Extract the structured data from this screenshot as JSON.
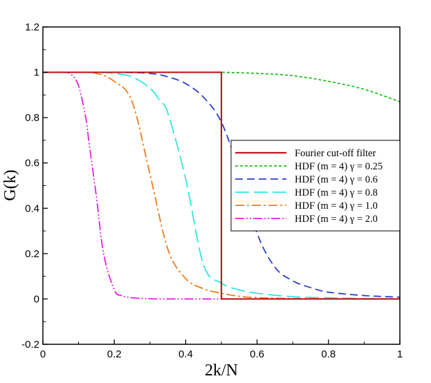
{
  "chart_data": {
    "type": "line",
    "title": "",
    "xlabel": "2k/N",
    "ylabel": "G(k)",
    "xlim": [
      0,
      1
    ],
    "ylim": [
      -0.2,
      1.2
    ],
    "xticks": [
      0,
      0.2,
      0.4,
      0.6,
      0.8,
      1
    ],
    "xtick_labels": [
      "0",
      "0.2",
      "0.4",
      "0.6",
      "0.8",
      "1"
    ],
    "yticks": [
      -0.2,
      0,
      0.2,
      0.4,
      0.6,
      0.8,
      1,
      1.2
    ],
    "ytick_labels": [
      "-0.2",
      "0",
      "0.2",
      "0.4",
      "0.6",
      "0.8",
      "1",
      "1.2"
    ],
    "grid": false,
    "legend_position": "right-middle",
    "series": [
      {
        "name": "Fourier cut-off filter",
        "color": "#c0141c",
        "style": "solid",
        "x": [
          0,
          0.5,
          0.5,
          1
        ],
        "y": [
          1,
          1,
          0,
          0
        ]
      },
      {
        "name": "HDF (m = 4) γ = 0.25",
        "color": "#1fbf1f",
        "style": "dotted",
        "x": [
          0,
          0.1,
          0.2,
          0.3,
          0.4,
          0.5,
          0.6,
          0.7,
          0.8,
          0.9,
          1.0
        ],
        "y": [
          1,
          1,
          1,
          1,
          1,
          1,
          0.995,
          0.985,
          0.96,
          0.925,
          0.87
        ]
      },
      {
        "name": "HDF (m = 4) γ = 0.6",
        "color": "#2b3fc9",
        "style": "dashed",
        "x": [
          0,
          0.2,
          0.3,
          0.35,
          0.4,
          0.45,
          0.5,
          0.55,
          0.6,
          0.65,
          0.7,
          0.75,
          0.8,
          0.9,
          1.0
        ],
        "y": [
          1,
          1,
          0.995,
          0.98,
          0.95,
          0.89,
          0.78,
          0.56,
          0.29,
          0.14,
          0.08,
          0.05,
          0.03,
          0.015,
          0.008
        ]
      },
      {
        "name": "HDF (m = 4) γ = 0.8",
        "color": "#2fe6e6",
        "style": "long-dashed",
        "x": [
          0,
          0.15,
          0.2,
          0.25,
          0.3,
          0.33,
          0.35,
          0.4,
          0.45,
          0.5,
          0.55,
          0.6,
          0.7,
          0.8,
          0.9,
          1.0
        ],
        "y": [
          1,
          1,
          0.995,
          0.98,
          0.93,
          0.87,
          0.82,
          0.53,
          0.15,
          0.07,
          0.04,
          0.025,
          0.01,
          0.005,
          0.002,
          0.001
        ]
      },
      {
        "name": "HDF (m = 4) γ = 1.0",
        "color": "#f07d1a",
        "style": "dash-dot",
        "x": [
          0,
          0.1,
          0.15,
          0.2,
          0.25,
          0.3,
          0.35,
          0.4,
          0.45,
          0.5,
          0.55,
          0.6,
          0.7,
          1.0
        ],
        "y": [
          1,
          1,
          0.995,
          0.96,
          0.87,
          0.55,
          0.22,
          0.09,
          0.045,
          0.025,
          0.012,
          0.006,
          0.002,
          0
        ]
      },
      {
        "name": "HDF (m = 4) γ = 2.0",
        "color": "#e020e0",
        "style": "dash-dot-dot",
        "x": [
          0,
          0.06,
          0.08,
          0.1,
          0.12,
          0.13,
          0.15,
          0.17,
          0.2,
          0.22,
          0.25,
          0.3,
          0.4,
          1.0
        ],
        "y": [
          1,
          1,
          0.99,
          0.94,
          0.8,
          0.68,
          0.45,
          0.2,
          0.04,
          0.015,
          0.005,
          0.001,
          0,
          0
        ]
      }
    ]
  }
}
